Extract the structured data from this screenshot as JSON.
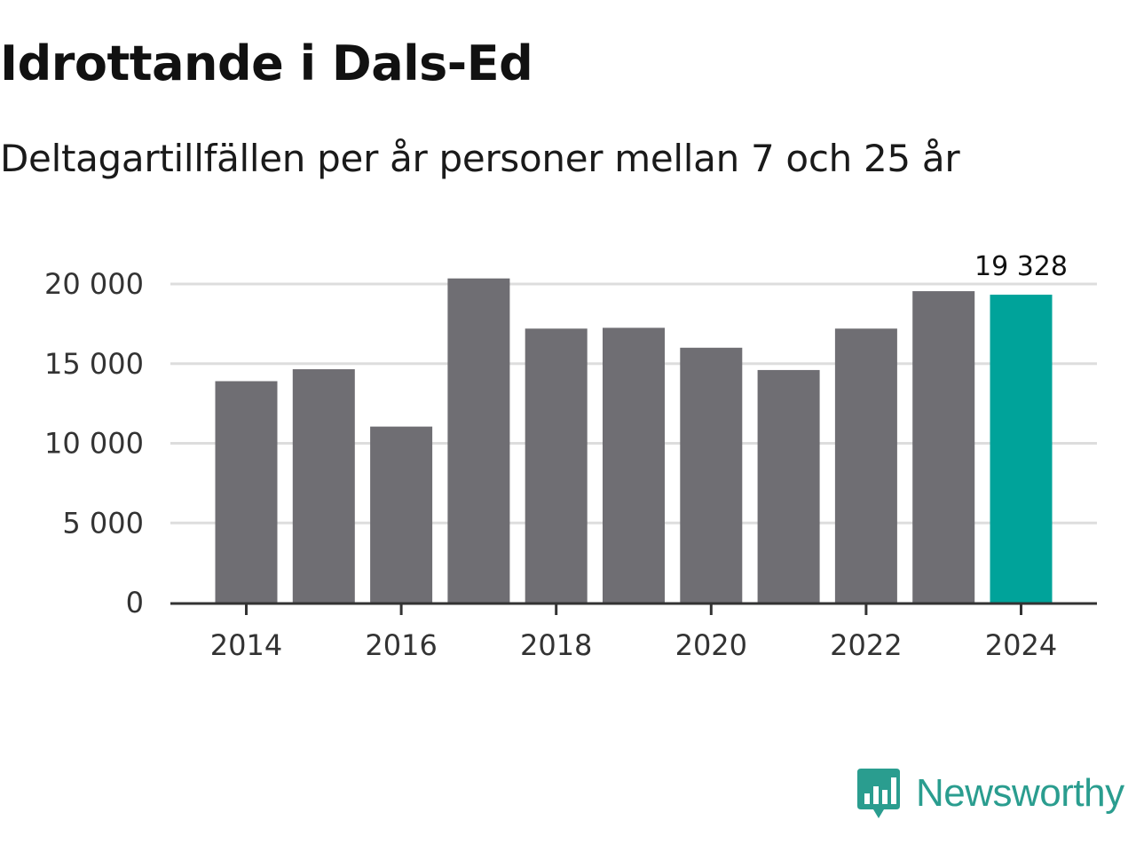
{
  "chart_data": {
    "type": "bar",
    "title": "Idrottande i Dals-Ed",
    "subtitle": "Deltagartillfällen per år personer mellan 7 och 25 år",
    "categories": [
      "2014",
      "2015",
      "2016",
      "2017",
      "2018",
      "2019",
      "2020",
      "2021",
      "2022",
      "2023",
      "2024"
    ],
    "values": [
      13900,
      14650,
      11050,
      20350,
      17200,
      17250,
      16000,
      14600,
      17200,
      19550,
      19328
    ],
    "x_tick_labels": [
      "2014",
      "2016",
      "2018",
      "2020",
      "2022",
      "2024"
    ],
    "y_ticks": [
      0,
      5000,
      10000,
      15000,
      20000
    ],
    "y_tick_labels": [
      "0",
      "5 000",
      "10 000",
      "15 000",
      "20 000"
    ],
    "ylim": [
      0,
      20000
    ],
    "highlight_index": 10,
    "highlight_label": "19 328",
    "xlabel": "",
    "ylabel": "",
    "grid": true,
    "colors": {
      "bar": "#6f6e73",
      "highlight": "#00a39a",
      "grid": "#dddddd",
      "axis": "#333333"
    }
  },
  "brand": {
    "name": "Newsworthy",
    "color": "#2a9d8f"
  }
}
